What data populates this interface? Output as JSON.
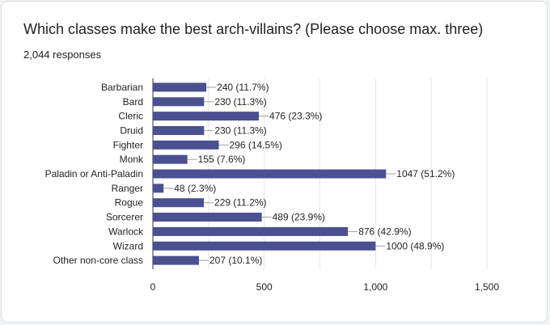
{
  "header": {
    "title": "Which classes make the best arch-villains? (Please choose max. three)",
    "responses": "2,044 responses"
  },
  "colors": {
    "bar": "#4b5090",
    "grid": "#e6e6e6",
    "leader": "#9e9e9e"
  },
  "chart_data": {
    "type": "bar",
    "orientation": "horizontal",
    "categories": [
      "Barbarian",
      "Bard",
      "Cleric",
      "Druid",
      "Fighter",
      "Monk",
      "Paladin or Anti-Paladin",
      "Ranger",
      "Rogue",
      "Sorcerer",
      "Warlock",
      "Wizard",
      "Other non-core class"
    ],
    "values": [
      240,
      230,
      476,
      230,
      296,
      155,
      1047,
      48,
      229,
      489,
      876,
      1000,
      207
    ],
    "labels": [
      "240 (11.7%)",
      "230 (11.3%)",
      "476 (23.3%)",
      "230 (11.3%)",
      "296 (14.5%)",
      "155 (7.6%)",
      "1047 (51.2%)",
      "48 (2.3%)",
      "229 (11.2%)",
      "489 (23.9%)",
      "876 (42.9%)",
      "1000 (48.9%)",
      "207 (10.1%)"
    ],
    "xlim": [
      0,
      1500
    ],
    "xticks": [
      0,
      500,
      1000,
      1500
    ],
    "xtick_labels": [
      "0",
      "500",
      "1,000",
      "1,500"
    ],
    "grid": true
  }
}
